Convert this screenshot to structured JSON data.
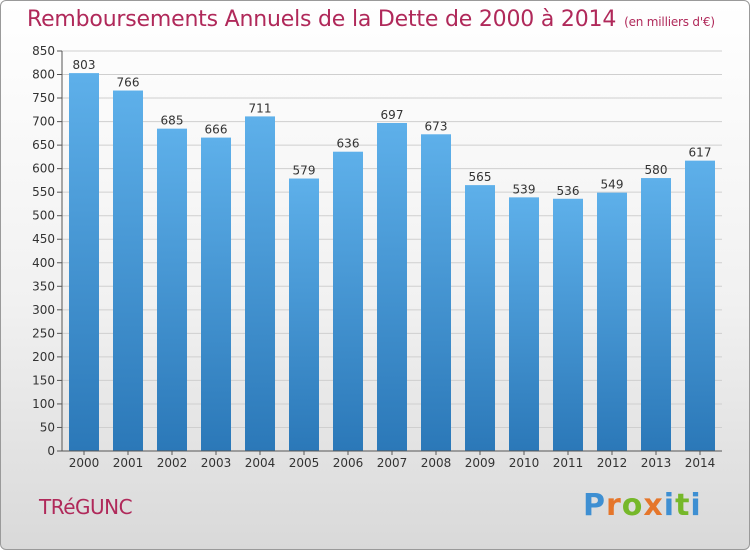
{
  "header": {
    "title": "Remboursements Annuels de la Dette de 2000 à 2014",
    "subtitle": "(en milliers d'€)"
  },
  "footer": {
    "town": "TRéGUNC",
    "logo": "Proxiti"
  },
  "colors": {
    "title": "#b0295a",
    "bar_top": "#5eb0ea",
    "bar_bottom": "#2b78b8"
  },
  "chart_data": {
    "type": "bar",
    "title": "Remboursements Annuels de la Dette de 2000 à 2014",
    "xlabel": "",
    "ylabel": "",
    "categories": [
      "2000",
      "2001",
      "2002",
      "2003",
      "2004",
      "2005",
      "2006",
      "2007",
      "2008",
      "2009",
      "2010",
      "2011",
      "2012",
      "2013",
      "2014"
    ],
    "values": [
      803,
      766,
      685,
      666,
      711,
      579,
      636,
      697,
      673,
      565,
      539,
      536,
      549,
      580,
      617
    ],
    "ylim": [
      0,
      850
    ],
    "yticks": [
      0,
      50,
      100,
      150,
      200,
      250,
      300,
      350,
      400,
      450,
      500,
      550,
      600,
      650,
      700,
      750,
      800,
      850
    ],
    "grid": true
  }
}
